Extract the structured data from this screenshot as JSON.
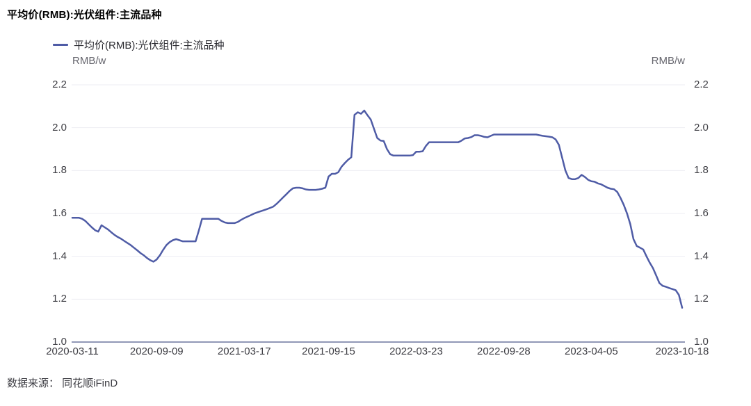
{
  "page": {
    "title": "平均价(RMB):光伏组件:主流品种",
    "source": "数据来源： 同花顺iFinD"
  },
  "legend": {
    "label": "平均价(RMB):光伏组件:主流品种"
  },
  "units": {
    "left": "RMB/w",
    "right": "RMB/w"
  },
  "colors": {
    "line": "#4f5ca6",
    "grid": "#ededf3",
    "axis": "#9097b6",
    "tick_text": "#3e3e44",
    "unit_text": "#66666e"
  },
  "chart_data": {
    "type": "line",
    "title": "平均价(RMB):光伏组件:主流品种",
    "ylabel": "RMB/w",
    "ylim": [
      1.0,
      2.2
    ],
    "y_ticks": [
      2.2,
      2.0,
      1.8,
      1.6,
      1.4,
      1.2,
      1.0
    ],
    "x_tick_labels": [
      "2020-03-11",
      "2020-09-09",
      "2021-03-17",
      "2021-09-15",
      "2022-03-23",
      "2022-09-28",
      "2023-04-05",
      "2023-10-18"
    ],
    "grid": "horizontal-only",
    "legend_position": "top-left",
    "series": [
      {
        "name": "平均价(RMB):光伏组件:主流品种",
        "points": [
          [
            "2020-03-11",
            1.58
          ],
          [
            "2020-03-18",
            1.58
          ],
          [
            "2020-03-25",
            1.58
          ],
          [
            "2020-04-01",
            1.575
          ],
          [
            "2020-04-08",
            1.565
          ],
          [
            "2020-04-15",
            1.55
          ],
          [
            "2020-04-22",
            1.535
          ],
          [
            "2020-04-29",
            1.522
          ],
          [
            "2020-05-06",
            1.515
          ],
          [
            "2020-05-13",
            1.545
          ],
          [
            "2020-05-20",
            1.535
          ],
          [
            "2020-05-27",
            1.525
          ],
          [
            "2020-06-03",
            1.512
          ],
          [
            "2020-06-10",
            1.5
          ],
          [
            "2020-06-17",
            1.49
          ],
          [
            "2020-06-24",
            1.482
          ],
          [
            "2020-07-01",
            1.472
          ],
          [
            "2020-07-08",
            1.462
          ],
          [
            "2020-07-15",
            1.452
          ],
          [
            "2020-07-22",
            1.44
          ],
          [
            "2020-07-29",
            1.428
          ],
          [
            "2020-08-05",
            1.415
          ],
          [
            "2020-08-12",
            1.405
          ],
          [
            "2020-08-19",
            1.392
          ],
          [
            "2020-08-26",
            1.382
          ],
          [
            "2020-09-02",
            1.375
          ],
          [
            "2020-09-09",
            1.385
          ],
          [
            "2020-09-16",
            1.405
          ],
          [
            "2020-09-23",
            1.43
          ],
          [
            "2020-09-30",
            1.452
          ],
          [
            "2020-10-07",
            1.466
          ],
          [
            "2020-10-14",
            1.475
          ],
          [
            "2020-10-21",
            1.48
          ],
          [
            "2020-10-28",
            1.475
          ],
          [
            "2020-11-04",
            1.47
          ],
          [
            "2020-11-11",
            1.47
          ],
          [
            "2020-11-18",
            1.47
          ],
          [
            "2020-11-25",
            1.47
          ],
          [
            "2020-12-02",
            1.47
          ],
          [
            "2020-12-09",
            1.52
          ],
          [
            "2020-12-16",
            1.575
          ],
          [
            "2020-12-23",
            1.575
          ],
          [
            "2020-12-30",
            1.575
          ],
          [
            "2021-01-06",
            1.575
          ],
          [
            "2021-01-13",
            1.575
          ],
          [
            "2021-01-20",
            1.575
          ],
          [
            "2021-01-27",
            1.565
          ],
          [
            "2021-02-03",
            1.558
          ],
          [
            "2021-02-10",
            1.555
          ],
          [
            "2021-02-17",
            1.555
          ],
          [
            "2021-02-24",
            1.555
          ],
          [
            "2021-03-03",
            1.56
          ],
          [
            "2021-03-10",
            1.57
          ],
          [
            "2021-03-17",
            1.578
          ],
          [
            "2021-03-24",
            1.585
          ],
          [
            "2021-03-31",
            1.592
          ],
          [
            "2021-04-07",
            1.599
          ],
          [
            "2021-04-14",
            1.605
          ],
          [
            "2021-04-21",
            1.61
          ],
          [
            "2021-04-28",
            1.615
          ],
          [
            "2021-05-05",
            1.62
          ],
          [
            "2021-05-12",
            1.626
          ],
          [
            "2021-05-19",
            1.632
          ],
          [
            "2021-05-26",
            1.645
          ],
          [
            "2021-06-02",
            1.66
          ],
          [
            "2021-06-09",
            1.675
          ],
          [
            "2021-06-16",
            1.69
          ],
          [
            "2021-06-23",
            1.705
          ],
          [
            "2021-06-30",
            1.717
          ],
          [
            "2021-07-07",
            1.72
          ],
          [
            "2021-07-14",
            1.72
          ],
          [
            "2021-07-21",
            1.717
          ],
          [
            "2021-07-28",
            1.712
          ],
          [
            "2021-08-04",
            1.71
          ],
          [
            "2021-08-11",
            1.71
          ],
          [
            "2021-08-18",
            1.71
          ],
          [
            "2021-08-25",
            1.712
          ],
          [
            "2021-09-01",
            1.715
          ],
          [
            "2021-09-08",
            1.72
          ],
          [
            "2021-09-15",
            1.772
          ],
          [
            "2021-09-22",
            1.785
          ],
          [
            "2021-09-29",
            1.785
          ],
          [
            "2021-10-06",
            1.792
          ],
          [
            "2021-10-13",
            1.818
          ],
          [
            "2021-10-20",
            1.835
          ],
          [
            "2021-10-27",
            1.85
          ],
          [
            "2021-11-03",
            1.862
          ],
          [
            "2021-11-10",
            2.06
          ],
          [
            "2021-11-17",
            2.072
          ],
          [
            "2021-11-24",
            2.065
          ],
          [
            "2021-12-01",
            2.08
          ],
          [
            "2021-12-08",
            2.058
          ],
          [
            "2021-12-15",
            2.038
          ],
          [
            "2021-12-22",
            1.995
          ],
          [
            "2021-12-29",
            1.952
          ],
          [
            "2022-01-05",
            1.94
          ],
          [
            "2022-01-12",
            1.938
          ],
          [
            "2022-01-19",
            1.9
          ],
          [
            "2022-01-26",
            1.876
          ],
          [
            "2022-02-02",
            1.87
          ],
          [
            "2022-02-09",
            1.87
          ],
          [
            "2022-02-16",
            1.87
          ],
          [
            "2022-02-23",
            1.87
          ],
          [
            "2022-03-02",
            1.87
          ],
          [
            "2022-03-09",
            1.87
          ],
          [
            "2022-03-16",
            1.872
          ],
          [
            "2022-03-23",
            1.888
          ],
          [
            "2022-03-30",
            1.888
          ],
          [
            "2022-04-06",
            1.89
          ],
          [
            "2022-04-13",
            1.915
          ],
          [
            "2022-04-20",
            1.932
          ],
          [
            "2022-04-27",
            1.932
          ],
          [
            "2022-05-04",
            1.932
          ],
          [
            "2022-05-11",
            1.932
          ],
          [
            "2022-05-18",
            1.932
          ],
          [
            "2022-05-25",
            1.932
          ],
          [
            "2022-06-01",
            1.932
          ],
          [
            "2022-06-08",
            1.932
          ],
          [
            "2022-06-15",
            1.932
          ],
          [
            "2022-06-22",
            1.932
          ],
          [
            "2022-06-29",
            1.94
          ],
          [
            "2022-07-06",
            1.95
          ],
          [
            "2022-07-13",
            1.952
          ],
          [
            "2022-07-20",
            1.956
          ],
          [
            "2022-07-27",
            1.965
          ],
          [
            "2022-08-03",
            1.965
          ],
          [
            "2022-08-10",
            1.962
          ],
          [
            "2022-08-17",
            1.957
          ],
          [
            "2022-08-24",
            1.955
          ],
          [
            "2022-08-31",
            1.962
          ],
          [
            "2022-09-07",
            1.968
          ],
          [
            "2022-09-14",
            1.968
          ],
          [
            "2022-09-21",
            1.968
          ],
          [
            "2022-09-28",
            1.968
          ],
          [
            "2022-10-05",
            1.968
          ],
          [
            "2022-10-12",
            1.968
          ],
          [
            "2022-10-19",
            1.968
          ],
          [
            "2022-10-26",
            1.968
          ],
          [
            "2022-11-02",
            1.968
          ],
          [
            "2022-11-09",
            1.968
          ],
          [
            "2022-11-16",
            1.968
          ],
          [
            "2022-11-23",
            1.968
          ],
          [
            "2022-11-30",
            1.968
          ],
          [
            "2022-12-07",
            1.968
          ],
          [
            "2022-12-14",
            1.965
          ],
          [
            "2022-12-21",
            1.962
          ],
          [
            "2022-12-28",
            1.96
          ],
          [
            "2023-01-04",
            1.958
          ],
          [
            "2023-01-11",
            1.955
          ],
          [
            "2023-01-18",
            1.945
          ],
          [
            "2023-01-25",
            1.92
          ],
          [
            "2023-02-01",
            1.86
          ],
          [
            "2023-02-08",
            1.8
          ],
          [
            "2023-02-15",
            1.765
          ],
          [
            "2023-02-22",
            1.76
          ],
          [
            "2023-03-01",
            1.76
          ],
          [
            "2023-03-08",
            1.765
          ],
          [
            "2023-03-15",
            1.78
          ],
          [
            "2023-03-22",
            1.77
          ],
          [
            "2023-03-29",
            1.757
          ],
          [
            "2023-04-05",
            1.75
          ],
          [
            "2023-04-12",
            1.748
          ],
          [
            "2023-04-19",
            1.74
          ],
          [
            "2023-04-26",
            1.736
          ],
          [
            "2023-05-03",
            1.728
          ],
          [
            "2023-05-10",
            1.72
          ],
          [
            "2023-05-17",
            1.715
          ],
          [
            "2023-05-24",
            1.713
          ],
          [
            "2023-05-31",
            1.7
          ],
          [
            "2023-06-07",
            1.672
          ],
          [
            "2023-06-14",
            1.64
          ],
          [
            "2023-06-21",
            1.6
          ],
          [
            "2023-06-28",
            1.55
          ],
          [
            "2023-07-05",
            1.48
          ],
          [
            "2023-07-12",
            1.448
          ],
          [
            "2023-07-19",
            1.44
          ],
          [
            "2023-07-26",
            1.432
          ],
          [
            "2023-08-02",
            1.4
          ],
          [
            "2023-08-09",
            1.37
          ],
          [
            "2023-08-16",
            1.345
          ],
          [
            "2023-08-23",
            1.31
          ],
          [
            "2023-08-30",
            1.275
          ],
          [
            "2023-09-06",
            1.262
          ],
          [
            "2023-09-13",
            1.258
          ],
          [
            "2023-09-20",
            1.252
          ],
          [
            "2023-09-27",
            1.247
          ],
          [
            "2023-10-04",
            1.242
          ],
          [
            "2023-10-11",
            1.22
          ],
          [
            "2023-10-18",
            1.16
          ]
        ]
      }
    ]
  }
}
